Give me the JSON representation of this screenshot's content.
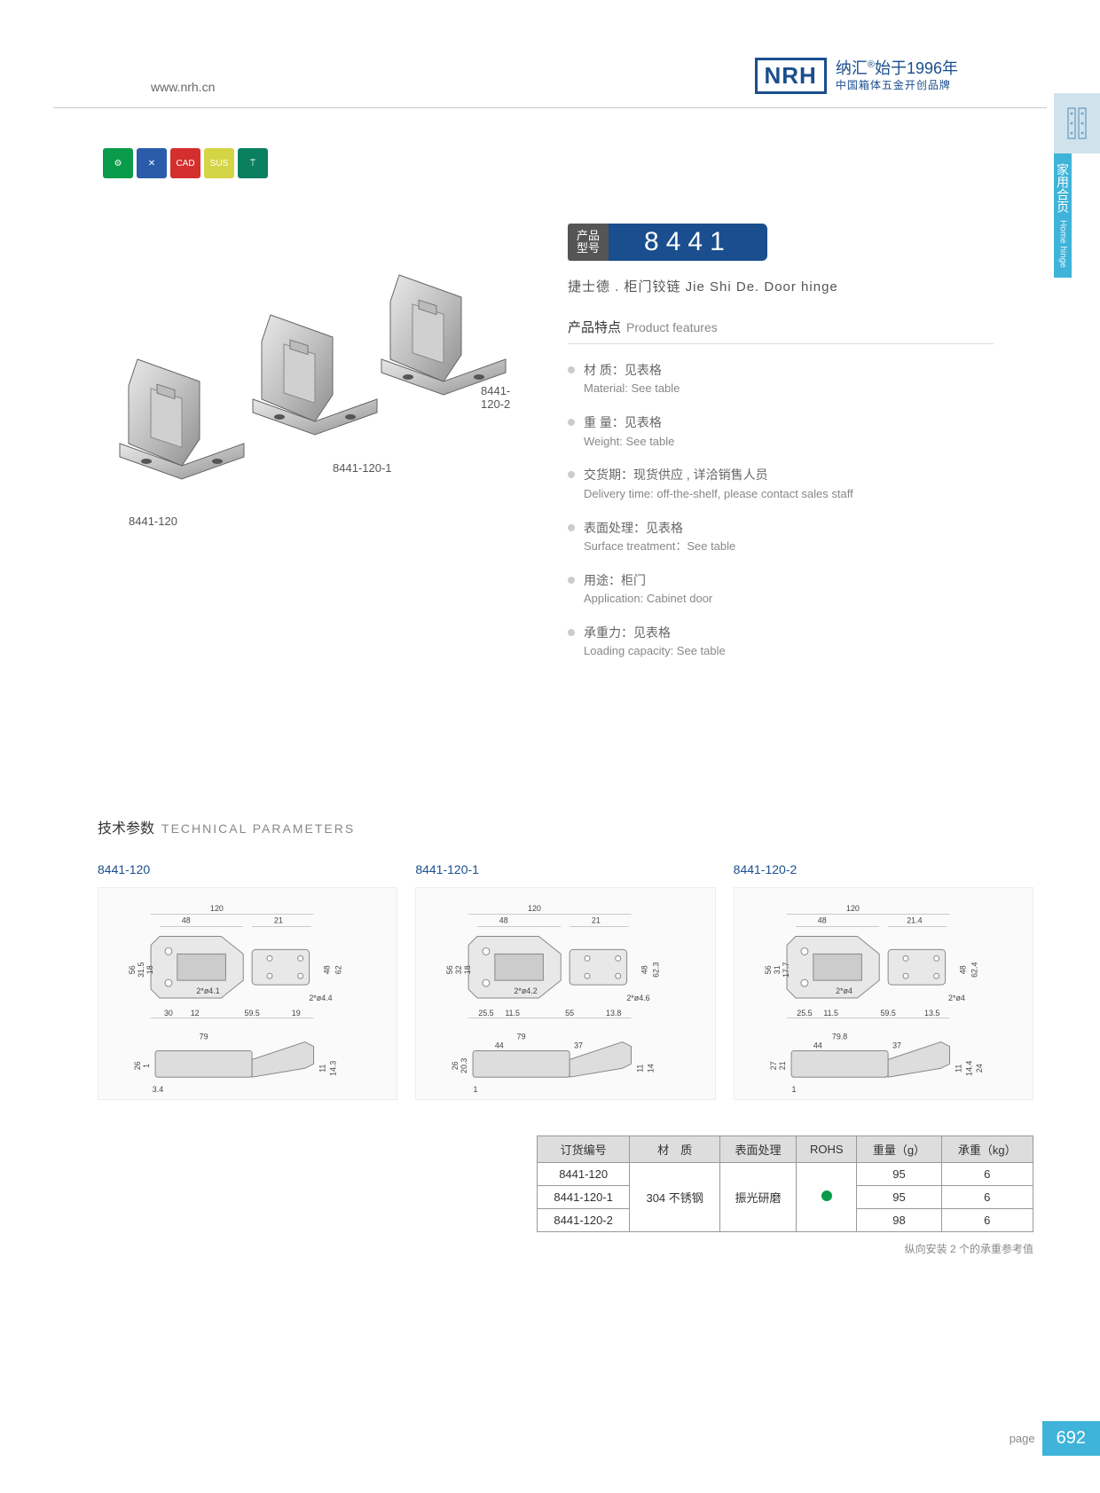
{
  "header": {
    "url": "www.nrh.cn",
    "logo": "NRH",
    "brand_cn": "纳汇",
    "brand_year": "始于1996年",
    "brand_tag": "中国箱体五金开创品牌"
  },
  "side": {
    "cn": "家用合页",
    "en": "Home hinge"
  },
  "icons": [
    "⚙",
    "✕",
    "CAD",
    "SUS",
    "⟙"
  ],
  "model": {
    "label_l1": "产品",
    "label_l2": "型号",
    "number": "8441"
  },
  "subtitle": "捷士德 . 柜门铰链   Jie Shi De. Door hinge",
  "features_title": {
    "cn": "产品特点",
    "en": "Product features"
  },
  "features": [
    {
      "cn": "材 质：见表格",
      "en": "Material: See table"
    },
    {
      "cn": "重 量：见表格",
      "en": "Weight: See table"
    },
    {
      "cn": "交货期：现货供应 , 详洽销售人员",
      "en": "Delivery time: off-the-shelf, please contact sales staff"
    },
    {
      "cn": "表面处理：见表格",
      "en": "Surface treatment：See table"
    },
    {
      "cn": "用途：柜门",
      "en": "Application: Cabinet door"
    },
    {
      "cn": "承重力：见表格",
      "en": "Loading capacity: See table"
    }
  ],
  "img_labels": {
    "a": "8441-120",
    "b": "8441-120-1",
    "c": "8441-120-2"
  },
  "tech_title": {
    "cn": "技术参数",
    "en": "TECHNICAL PARAMETERS"
  },
  "drawings": [
    {
      "label": "8441-120",
      "dims": {
        "w": "120",
        "h1": "48",
        "h2": "21",
        "v1": "56",
        "v2": "31.5",
        "v3": "18",
        "d1": "2*ø4.1",
        "h3": "30",
        "h4": "12",
        "h5": "59.5",
        "h6": "19",
        "d2": "2*ø4.4",
        "v4": "48",
        "v5": "62",
        "bw": "79",
        "bv1": "26",
        "bv2": "1",
        "bv3": "3.4",
        "bv4": "11",
        "bv5": "14.3"
      }
    },
    {
      "label": "8441-120-1",
      "dims": {
        "w": "120",
        "h1": "48",
        "h2": "21",
        "v1": "56",
        "v2": "32",
        "v3": "18",
        "d1": "2*ø4.2",
        "h3": "25.5",
        "h4": "11.5",
        "h5": "55",
        "h6": "13.8",
        "d2": "2*ø4.6",
        "v4": "48",
        "v5": "62.3",
        "bw": "79",
        "bh1": "44",
        "bh2": "37",
        "bv1": "26",
        "bv2": "20.3",
        "bv3": "1",
        "bv4": "11",
        "bv5": "14"
      }
    },
    {
      "label": "8441-120-2",
      "dims": {
        "w": "120",
        "h1": "48",
        "h2": "21.4",
        "v1": "56",
        "v2": "31",
        "v3": "17.7",
        "d1": "2*ø4",
        "h3": "25.5",
        "h4": "11.5",
        "h5": "59.5",
        "h6": "13.5",
        "d2": "2*ø4",
        "v4": "48",
        "v5": "62.4",
        "bw": "79.8",
        "bh1": "44",
        "bh2": "37",
        "bv1": "27",
        "bv2": "21",
        "bv3": "1",
        "bv4": "11",
        "bv5": "14.4",
        "bv6": "24"
      }
    }
  ],
  "table": {
    "headers": [
      "订货编号",
      "材　质",
      "表面处理",
      "ROHS",
      "重量（g）",
      "承重（kg）"
    ],
    "material": "304 不锈钢",
    "surface": "振光研磨",
    "rows": [
      {
        "code": "8441-120",
        "weight": "95",
        "load": "6"
      },
      {
        "code": "8441-120-1",
        "weight": "95",
        "load": "6"
      },
      {
        "code": "8441-120-2",
        "weight": "98",
        "load": "6"
      }
    ],
    "note": "纵向安装 2 个的承重参考值"
  },
  "footer": {
    "label": "page",
    "num": "692"
  },
  "colors": {
    "brand": "#1a4e8e",
    "accent": "#3fb3d9",
    "green": "#0a9b4a"
  }
}
